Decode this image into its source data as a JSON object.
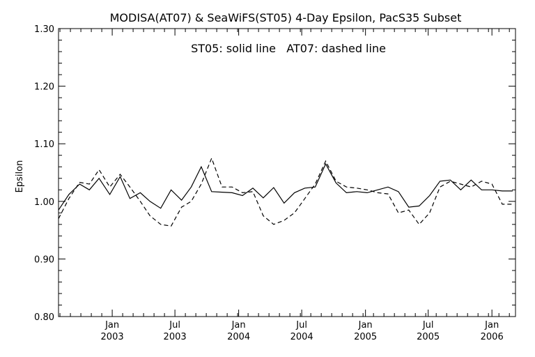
{
  "chart_data": {
    "type": "line",
    "title": "MODISA(AT07) & SeaWiFS(ST05) 4-Day Epsilon, PacS35 Subset",
    "annotation": "ST05: solid line   AT07: dashed line",
    "ylabel": "Epsilon",
    "xlabel": "",
    "ylim": [
      0.8,
      1.3
    ],
    "xlim": [
      "2002-07-30",
      "2006-03-10"
    ],
    "y_ticks": [
      {
        "value": 0.8,
        "label": "0.80"
      },
      {
        "value": 0.9,
        "label": "0.90"
      },
      {
        "value": 1.0,
        "label": "1.00"
      },
      {
        "value": 1.1,
        "label": "1.10"
      },
      {
        "value": 1.2,
        "label": "1.20"
      },
      {
        "value": 1.3,
        "label": "1.30"
      }
    ],
    "x_ticks": [
      {
        "date": "2003-01-01",
        "month": "Jan",
        "year": "2003"
      },
      {
        "date": "2003-07-01",
        "month": "Jul",
        "year": "2003"
      },
      {
        "date": "2004-01-01",
        "month": "Jan",
        "year": "2004"
      },
      {
        "date": "2004-07-01",
        "month": "Jul",
        "year": "2004"
      },
      {
        "date": "2005-01-01",
        "month": "Jan",
        "year": "2005"
      },
      {
        "date": "2005-07-01",
        "month": "Jul",
        "year": "2005"
      },
      {
        "date": "2006-01-01",
        "month": "Jan",
        "year": "2006"
      }
    ],
    "series": [
      {
        "name": "ST05",
        "style": "solid",
        "x": [
          "2002-07-30",
          "2002-08-29",
          "2002-09-29",
          "2002-10-27",
          "2002-11-24",
          "2002-12-25",
          "2003-01-24",
          "2003-02-21",
          "2003-03-23",
          "2003-04-20",
          "2003-05-21",
          "2003-06-20",
          "2003-07-20",
          "2003-08-17",
          "2003-09-15",
          "2003-10-15",
          "2003-11-14",
          "2003-12-13",
          "2004-01-12",
          "2004-02-11",
          "2004-03-12",
          "2004-04-11",
          "2004-05-11",
          "2004-06-10",
          "2004-07-10",
          "2004-08-09",
          "2004-09-08",
          "2004-10-08",
          "2004-11-07",
          "2004-12-07",
          "2005-01-06",
          "2005-02-05",
          "2005-03-07",
          "2005-04-06",
          "2005-05-06",
          "2005-06-05",
          "2005-07-05",
          "2005-08-04",
          "2005-09-03",
          "2005-10-03",
          "2005-11-02",
          "2005-12-02",
          "2006-01-01",
          "2006-01-31",
          "2006-03-02"
        ],
        "values": [
          0.985,
          1.012,
          1.03,
          1.02,
          1.04,
          1.012,
          1.043,
          1.005,
          1.015,
          1.0,
          0.988,
          1.02,
          1.002,
          1.025,
          1.06,
          1.017,
          1.016,
          1.015,
          1.01,
          1.023,
          1.006,
          1.024,
          0.997,
          1.015,
          1.023,
          1.025,
          1.065,
          1.032,
          1.015,
          1.017,
          1.015,
          1.02,
          1.025,
          1.017,
          0.99,
          0.992,
          1.01,
          1.035,
          1.037,
          1.02,
          1.037,
          1.02,
          1.02,
          1.018,
          1.018
        ]
      },
      {
        "name": "AT07",
        "style": "dashed",
        "x": [
          "2002-07-30",
          "2002-08-29",
          "2002-09-29",
          "2002-10-27",
          "2002-11-24",
          "2002-12-25",
          "2003-01-24",
          "2003-02-21",
          "2003-03-23",
          "2003-04-20",
          "2003-05-21",
          "2003-06-20",
          "2003-07-20",
          "2003-08-17",
          "2003-09-15",
          "2003-10-15",
          "2003-11-14",
          "2003-12-13",
          "2004-01-12",
          "2004-02-11",
          "2004-03-12",
          "2004-04-11",
          "2004-05-11",
          "2004-06-10",
          "2004-07-10",
          "2004-08-09",
          "2004-09-08",
          "2004-10-08",
          "2004-11-07",
          "2004-12-07",
          "2005-01-06",
          "2005-02-05",
          "2005-03-07",
          "2005-04-06",
          "2005-05-06",
          "2005-06-05",
          "2005-07-05",
          "2005-08-04",
          "2005-09-03",
          "2005-10-03",
          "2005-11-02",
          "2005-12-02",
          "2006-01-01",
          "2006-01-31",
          "2006-03-02"
        ],
        "values": [
          0.97,
          1.005,
          1.033,
          1.03,
          1.055,
          1.025,
          1.047,
          1.025,
          1.0,
          0.975,
          0.96,
          0.957,
          0.99,
          1.0,
          1.03,
          1.075,
          1.025,
          1.025,
          1.015,
          1.017,
          0.975,
          0.96,
          0.967,
          0.98,
          1.005,
          1.03,
          1.07,
          1.035,
          1.025,
          1.023,
          1.02,
          1.015,
          1.013,
          0.98,
          0.985,
          0.96,
          0.98,
          1.025,
          1.035,
          1.03,
          1.025,
          1.035,
          1.03,
          0.995,
          0.995
        ]
      }
    ],
    "grid": false,
    "legend": "none"
  },
  "colors": {
    "background": "#ffffff",
    "ink": "#000000"
  }
}
